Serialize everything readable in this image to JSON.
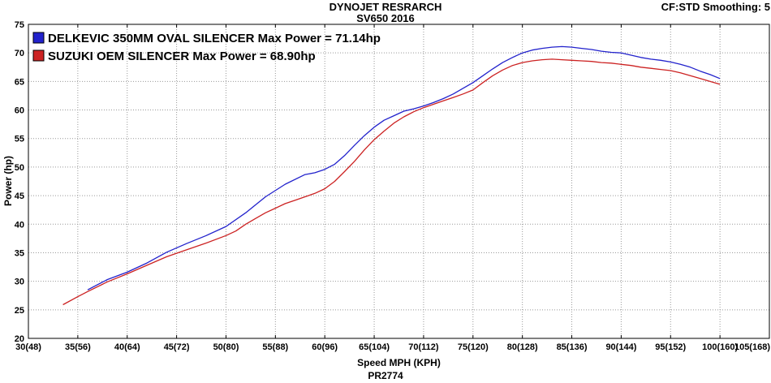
{
  "header": {
    "title": "DYNOJET RESRARCH",
    "subtitle": "SV650 2016",
    "smoothing": "CF:STD Smoothing: 5"
  },
  "footer": {
    "code": "PR2774"
  },
  "chart_data": {
    "type": "line",
    "title": "DYNOJET RESRARCH",
    "subtitle": "SV650 2016",
    "xlabel": "Speed MPH (KPH)",
    "ylabel": "Power (hp)",
    "xlim": [
      30,
      105
    ],
    "ylim": [
      20,
      75
    ],
    "grid": "dotted",
    "legend_position": "top-left",
    "y_ticks": [
      20,
      25,
      30,
      35,
      40,
      45,
      50,
      55,
      60,
      65,
      70,
      75
    ],
    "x_ticks": [
      {
        "value": 30,
        "label": "30(48)"
      },
      {
        "value": 35,
        "label": "35(56)"
      },
      {
        "value": 40,
        "label": "40(64)"
      },
      {
        "value": 45,
        "label": "45(72)"
      },
      {
        "value": 50,
        "label": "50(80)"
      },
      {
        "value": 55,
        "label": "55(88)"
      },
      {
        "value": 60,
        "label": "60(96)"
      },
      {
        "value": 65,
        "label": "65(104)"
      },
      {
        "value": 70,
        "label": "70(112)"
      },
      {
        "value": 75,
        "label": "75(120)"
      },
      {
        "value": 80,
        "label": "80(128)"
      },
      {
        "value": 85,
        "label": "85(136)"
      },
      {
        "value": 90,
        "label": "90(144)"
      },
      {
        "value": 95,
        "label": "95(152)"
      },
      {
        "value": 100,
        "label": "100(160)"
      },
      {
        "value": 105,
        "label": "105(168)"
      }
    ],
    "series": [
      {
        "name": "DELKEVIC 350MM OVAL SILENCER  Max Power = 71.14hp",
        "max_power_hp": 71.14,
        "color": "#2222cc",
        "points": [
          [
            36,
            28.5
          ],
          [
            38,
            30.3
          ],
          [
            40,
            31.6
          ],
          [
            42,
            33.2
          ],
          [
            44,
            35.1
          ],
          [
            46,
            36.6
          ],
          [
            48,
            38.0
          ],
          [
            50,
            39.6
          ],
          [
            52,
            42.0
          ],
          [
            54,
            44.8
          ],
          [
            56,
            47.0
          ],
          [
            58,
            48.7
          ],
          [
            59,
            49.0
          ],
          [
            60,
            49.6
          ],
          [
            61,
            50.5
          ],
          [
            62,
            52.0
          ],
          [
            63,
            53.8
          ],
          [
            64,
            55.5
          ],
          [
            65,
            57.0
          ],
          [
            66,
            58.2
          ],
          [
            67,
            59.0
          ],
          [
            68,
            59.8
          ],
          [
            69,
            60.2
          ],
          [
            70,
            60.7
          ],
          [
            71,
            61.3
          ],
          [
            72,
            62.0
          ],
          [
            73,
            62.8
          ],
          [
            74,
            63.8
          ],
          [
            75,
            64.8
          ],
          [
            76,
            66.0
          ],
          [
            77,
            67.2
          ],
          [
            78,
            68.3
          ],
          [
            79,
            69.2
          ],
          [
            80,
            70.0
          ],
          [
            81,
            70.5
          ],
          [
            82,
            70.8
          ],
          [
            83,
            71.0
          ],
          [
            84,
            71.1
          ],
          [
            85,
            71.0
          ],
          [
            86,
            70.8
          ],
          [
            87,
            70.6
          ],
          [
            88,
            70.3
          ],
          [
            89,
            70.1
          ],
          [
            90,
            70.0
          ],
          [
            91,
            69.6
          ],
          [
            92,
            69.2
          ],
          [
            93,
            68.9
          ],
          [
            94,
            68.7
          ],
          [
            95,
            68.4
          ],
          [
            96,
            68.0
          ],
          [
            97,
            67.5
          ],
          [
            98,
            66.8
          ],
          [
            99,
            66.2
          ],
          [
            100,
            65.5
          ]
        ]
      },
      {
        "name": "SUZUKI OEM SILENCER Max Power = 68.90hp",
        "max_power_hp": 68.9,
        "color": "#cc2222",
        "points": [
          [
            33.5,
            25.9
          ],
          [
            35,
            27.3
          ],
          [
            36,
            28.2
          ],
          [
            38,
            29.9
          ],
          [
            40,
            31.3
          ],
          [
            42,
            32.8
          ],
          [
            44,
            34.3
          ],
          [
            46,
            35.5
          ],
          [
            48,
            36.7
          ],
          [
            50,
            38.0
          ],
          [
            51,
            38.8
          ],
          [
            52,
            40.0
          ],
          [
            53,
            41.0
          ],
          [
            54,
            42.0
          ],
          [
            55,
            42.8
          ],
          [
            56,
            43.6
          ],
          [
            57,
            44.2
          ],
          [
            58,
            44.8
          ],
          [
            59,
            45.4
          ],
          [
            60,
            46.2
          ],
          [
            61,
            47.5
          ],
          [
            62,
            49.2
          ],
          [
            63,
            51.0
          ],
          [
            64,
            53.0
          ],
          [
            65,
            54.8
          ],
          [
            66,
            56.3
          ],
          [
            67,
            57.7
          ],
          [
            68,
            58.8
          ],
          [
            69,
            59.7
          ],
          [
            70,
            60.4
          ],
          [
            71,
            61.0
          ],
          [
            72,
            61.6
          ],
          [
            73,
            62.2
          ],
          [
            74,
            62.8
          ],
          [
            75,
            63.5
          ],
          [
            76,
            64.8
          ],
          [
            77,
            66.0
          ],
          [
            78,
            67.0
          ],
          [
            79,
            67.8
          ],
          [
            80,
            68.3
          ],
          [
            81,
            68.6
          ],
          [
            82,
            68.8
          ],
          [
            83,
            68.9
          ],
          [
            84,
            68.8
          ],
          [
            85,
            68.7
          ],
          [
            86,
            68.6
          ],
          [
            87,
            68.5
          ],
          [
            88,
            68.3
          ],
          [
            89,
            68.2
          ],
          [
            90,
            68.0
          ],
          [
            91,
            67.8
          ],
          [
            92,
            67.5
          ],
          [
            93,
            67.3
          ],
          [
            94,
            67.1
          ],
          [
            95,
            66.9
          ],
          [
            96,
            66.5
          ],
          [
            97,
            66.0
          ],
          [
            98,
            65.5
          ],
          [
            99,
            65.0
          ],
          [
            100,
            64.5
          ]
        ]
      }
    ]
  }
}
